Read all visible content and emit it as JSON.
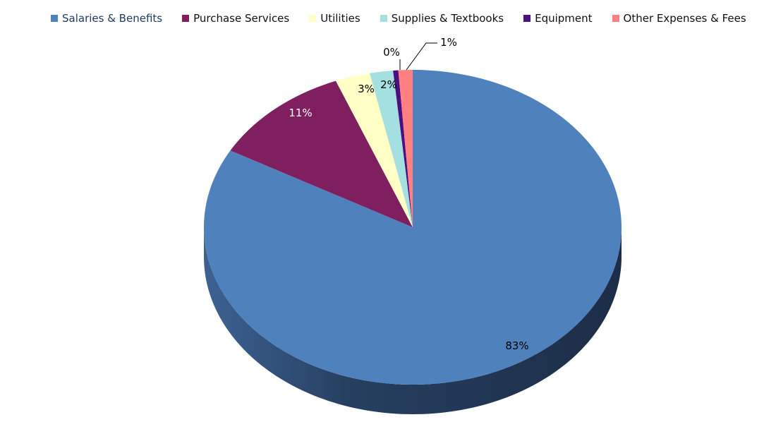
{
  "chart_data": {
    "type": "pie",
    "style": "3d",
    "title": "",
    "legend_position": "top",
    "categories": [
      "Salaries & Benefits",
      "Purchase Services",
      "Utilities",
      "Supplies & Textbooks",
      "Equipment",
      "Other Expenses & Fees"
    ],
    "values": [
      83.1,
      10.9,
      2.7,
      1.8,
      0.4,
      1.1
    ],
    "labels": [
      "83%",
      "11%",
      "3%",
      "2%",
      "0%",
      "1%"
    ],
    "colors": [
      "#4f81bd",
      "#7f1f5f",
      "#ffffc6",
      "#a5e0e0",
      "#4b0f7f",
      "#ff8080"
    ],
    "label_colors": [
      "#000000",
      "#ffffff",
      "#000000",
      "#000000",
      "#000000",
      "#000000"
    ]
  },
  "legend": {
    "items": [
      {
        "label": "Salaries & Benefits",
        "color": "#4f81bd"
      },
      {
        "label": "Purchase Services",
        "color": "#7f1f5f"
      },
      {
        "label": "Utilities",
        "color": "#ffffc6"
      },
      {
        "label": "Supplies & Textbooks",
        "color": "#a5e0e0"
      },
      {
        "label": "Equipment",
        "color": "#4b0f7f"
      },
      {
        "label": "Other Expenses & Fees",
        "color": "#ff8080"
      }
    ]
  }
}
